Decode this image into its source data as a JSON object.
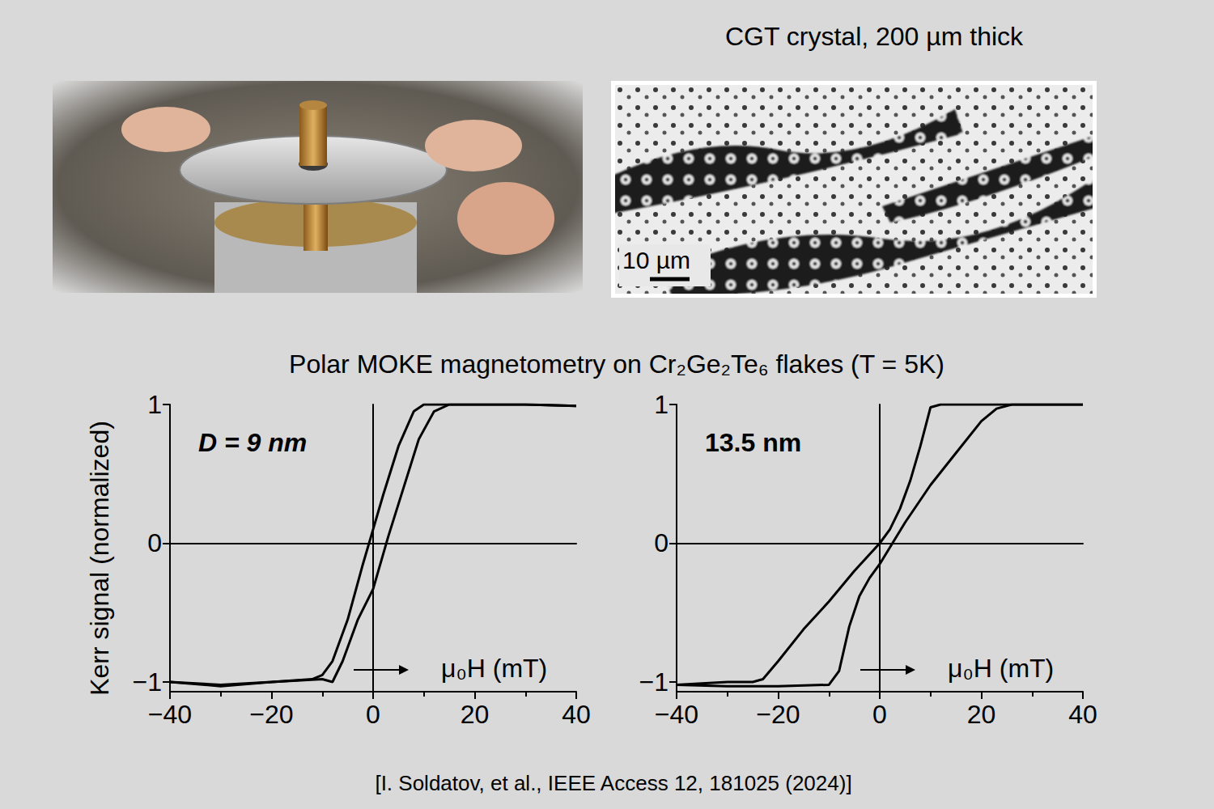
{
  "caption": "CGT crystal, 200 µm thick",
  "scale_bar": "10 µm",
  "title": "Polar MOKE magnetometry on Cr₂Ge₂Te₆ flakes (T = 5K)",
  "y_label": "Kerr signal (normalized)",
  "source": "[I. Soldatov, et al., IEEE Access 12, 181025 (2024)]",
  "chart_data": [
    {
      "type": "line",
      "annotation": "D = 9 nm",
      "x_label": "μ₀H (mT)",
      "xlim": [
        -40,
        40
      ],
      "xticks": [
        {
          "value": -40,
          "label": "−40"
        },
        {
          "value": -20,
          "label": "−20"
        },
        0,
        20,
        40
      ],
      "ylim": [
        -1.07,
        1.0
      ],
      "yticks": [
        {
          "value": -1,
          "label": "−1"
        },
        0,
        1
      ],
      "series": [
        {
          "color": "#000000",
          "x": [
            40,
            30,
            20,
            10,
            8,
            5,
            2,
            0,
            -2,
            -5,
            -8,
            -10,
            -12,
            -20,
            -30,
            -40
          ],
          "values": [
            0.99,
            1.0,
            1.0,
            1.0,
            0.95,
            0.7,
            0.35,
            0.1,
            -0.15,
            -0.55,
            -0.85,
            -0.95,
            -0.98,
            -1.0,
            -1.02,
            -1.0
          ]
        },
        {
          "color": "#000000",
          "x": [
            -40,
            -30,
            -20,
            -10,
            -8,
            -6,
            -3,
            0,
            3,
            6,
            9,
            12,
            15,
            20,
            30,
            40
          ],
          "values": [
            -1.0,
            -1.03,
            -1.0,
            -0.98,
            -1.0,
            -0.85,
            -0.55,
            -0.33,
            0.05,
            0.4,
            0.75,
            0.95,
            1.0,
            1.0,
            1.0,
            0.99
          ]
        }
      ]
    },
    {
      "type": "line",
      "annotation": "13.5 nm",
      "x_label": "μ₀H (mT)",
      "xlim": [
        -40,
        40
      ],
      "xticks": [
        {
          "value": -40,
          "label": "−40"
        },
        {
          "value": -20,
          "label": "−20"
        },
        0,
        20,
        40
      ],
      "ylim": [
        -1.07,
        1.0
      ],
      "yticks": [
        {
          "value": -1,
          "label": "−1"
        },
        0,
        1
      ],
      "series": [
        {
          "color": "#000000",
          "x": [
            40,
            30,
            20,
            12,
            10,
            8,
            6,
            4,
            2,
            0,
            -5,
            -10,
            -15,
            -20,
            -23,
            -25,
            -30,
            -40
          ],
          "values": [
            1.0,
            1.0,
            1.0,
            1.0,
            0.98,
            0.7,
            0.45,
            0.25,
            0.1,
            0.0,
            -0.2,
            -0.42,
            -0.62,
            -0.85,
            -0.98,
            -1.0,
            -1.0,
            -1.02
          ]
        },
        {
          "color": "#000000",
          "x": [
            -40,
            -30,
            -20,
            -10,
            -8,
            -6,
            -4,
            -2,
            0,
            5,
            10,
            15,
            20,
            23,
            26,
            30,
            40
          ],
          "values": [
            -1.02,
            -1.03,
            -1.03,
            -1.02,
            -0.92,
            -0.6,
            -0.38,
            -0.25,
            -0.15,
            0.15,
            0.42,
            0.65,
            0.88,
            0.97,
            1.0,
            1.0,
            1.0
          ]
        }
      ]
    }
  ]
}
